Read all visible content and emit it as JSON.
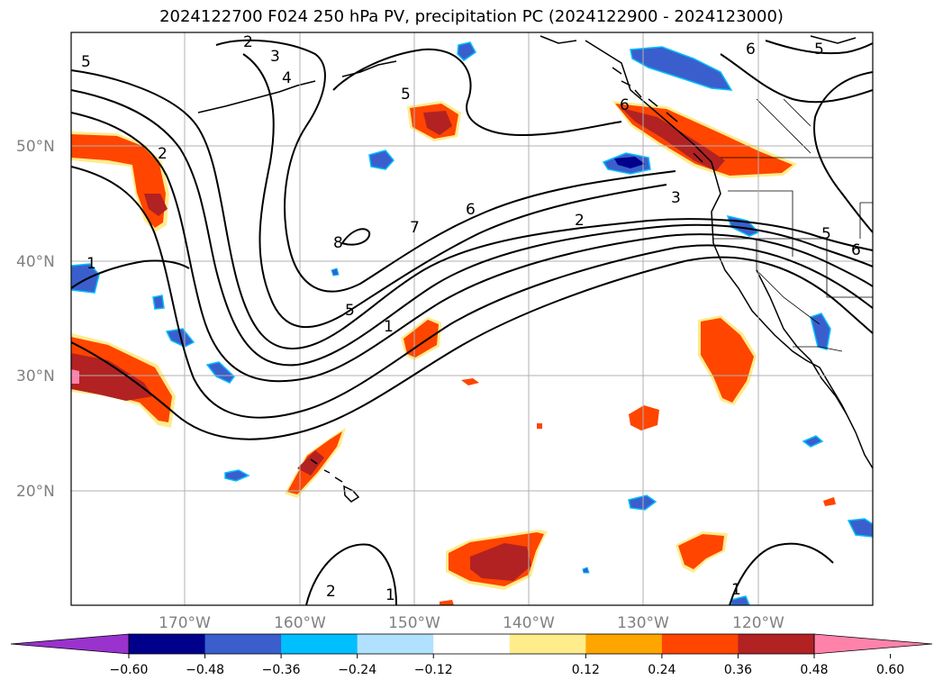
{
  "title": "2024122700 F024 250 hPa PV, precipitation PC (2024122900 - 2024123000)",
  "lat_labels": [
    "50°N",
    "40°N",
    "30°N",
    "20°N"
  ],
  "lon_labels": [
    "170°W",
    "160°W",
    "150°W",
    "140°W",
    "130°W",
    "120°W"
  ],
  "colorbar": {
    "colors": [
      "#9a32cd",
      "#00008b",
      "#3a5fcd",
      "#00bfff",
      "#b0e2ff",
      "#ffffff",
      "#ffec8b",
      "#ffa500",
      "#ff4500",
      "#b22222",
      "#ff82ab"
    ],
    "ticks": [
      "−0.60",
      "−0.48",
      "−0.36",
      "−0.24",
      "−0.12",
      "0.12",
      "0.24",
      "0.36",
      "0.48",
      "0.60"
    ]
  },
  "contour_labels": {
    "c1": "5",
    "c2": "2",
    "c3": "3",
    "c4": "4",
    "c5": "5",
    "c6": "6",
    "c7": "5",
    "c8": "2",
    "c9": "1",
    "c10": "8",
    "c11": "7",
    "c12": "6",
    "c13": "3",
    "c14": "2",
    "c15": "5",
    "c16": "1",
    "c17": "6",
    "c18": "5",
    "c19": "6",
    "c20": "2",
    "c21": "1",
    "c22": "1"
  }
}
